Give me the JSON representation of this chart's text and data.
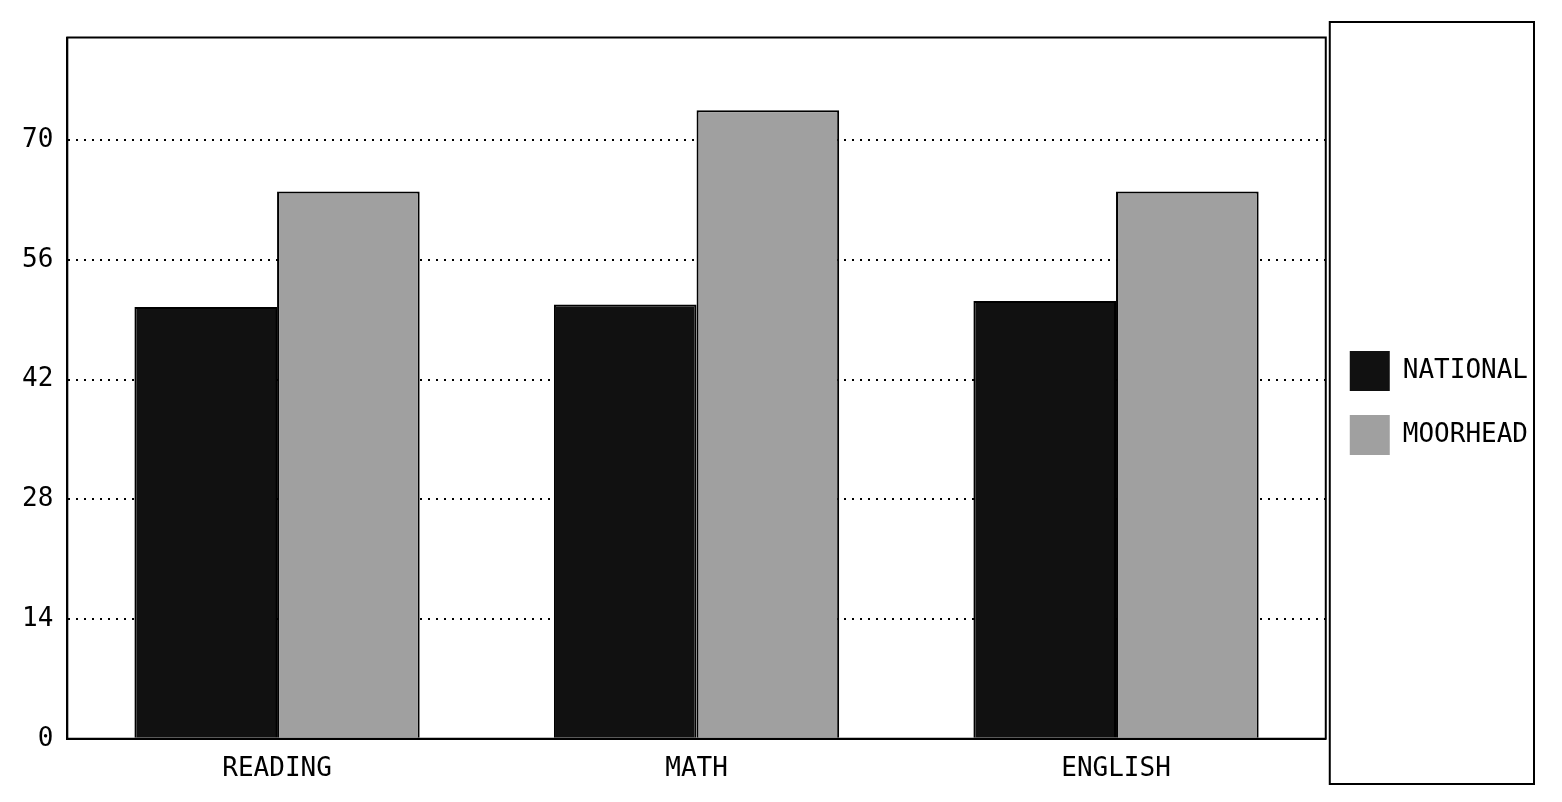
{
  "chart_data": {
    "type": "bar",
    "categories": [
      "READING",
      "MATH",
      "ENGLISH"
    ],
    "series": [
      {
        "name": "NATIONAL",
        "color": "#111111",
        "values": [
          50.5,
          50.8,
          51.2
        ]
      },
      {
        "name": "MOORHEAD",
        "color": "#a0a0a0",
        "values": [
          64,
          73.5,
          64
        ]
      }
    ],
    "ylim": [
      0,
      82
    ],
    "yticks": [
      0,
      14,
      28,
      42,
      56,
      70
    ],
    "grid": "y",
    "legend": "right"
  }
}
